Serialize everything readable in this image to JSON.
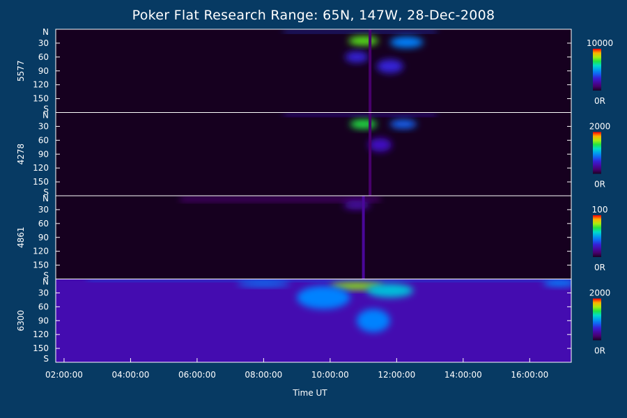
{
  "chart_data": {
    "type": "heatmap",
    "title": "Poker Flat Research Range: 65N, 147W, 28-Dec-2008",
    "xlabel": "Time UT",
    "x_ticks": [
      "02:00:00",
      "04:00:00",
      "06:00:00",
      "08:00:00",
      "10:00:00",
      "12:00:00",
      "14:00:00",
      "16:00:00"
    ],
    "x_range_hours": [
      1.75,
      17.25
    ],
    "y_ticks": [
      "N",
      "30",
      "60",
      "90",
      "120",
      "150",
      "S"
    ],
    "y_range_deg": [
      0,
      180
    ],
    "panels": [
      {
        "name": "5577",
        "scale_max": "10000",
        "scale_min": "0R",
        "features": [
          {
            "type": "band",
            "t0": 8.6,
            "t1": 13.2,
            "a0": 3,
            "a1": 8,
            "v": 0.35
          },
          {
            "type": "blob",
            "t": 11.0,
            "a": 25,
            "st": 0.45,
            "sa": 10,
            "v": 0.75
          },
          {
            "type": "blob",
            "t": 10.8,
            "a": 60,
            "st": 0.35,
            "sa": 12,
            "v": 0.3
          },
          {
            "type": "blob",
            "t": 12.3,
            "a": 28,
            "st": 0.5,
            "sa": 12,
            "v": 0.45
          },
          {
            "type": "blob",
            "t": 11.8,
            "a": 80,
            "st": 0.4,
            "sa": 15,
            "v": 0.3
          },
          {
            "type": "stripe",
            "t": 11.2,
            "v": 0.1
          }
        ]
      },
      {
        "name": "4278",
        "scale_max": "2000",
        "scale_min": "0R",
        "features": [
          {
            "type": "band",
            "t0": 8.6,
            "t1": 13.2,
            "a0": 3,
            "a1": 8,
            "v": 0.28
          },
          {
            "type": "blob",
            "t": 11.0,
            "a": 25,
            "st": 0.4,
            "sa": 10,
            "v": 0.7
          },
          {
            "type": "blob",
            "t": 12.2,
            "a": 25,
            "st": 0.4,
            "sa": 10,
            "v": 0.4
          },
          {
            "type": "blob",
            "t": 11.5,
            "a": 70,
            "st": 0.35,
            "sa": 15,
            "v": 0.25
          },
          {
            "type": "stripe",
            "t": 11.2,
            "v": 0.1
          }
        ]
      },
      {
        "name": "4861",
        "scale_max": "100",
        "scale_min": "0R",
        "features": [
          {
            "type": "band",
            "t0": 5.5,
            "t1": 11.5,
            "a0": 2,
            "a1": 12,
            "v": 0.12
          },
          {
            "type": "blob",
            "t": 10.8,
            "a": 20,
            "st": 0.4,
            "sa": 10,
            "v": 0.2
          },
          {
            "type": "stripe",
            "t": 11.0,
            "v": 0.18
          }
        ]
      },
      {
        "name": "6300",
        "scale_max": "2000",
        "scale_min": "0R",
        "features": [
          {
            "type": "base",
            "v": 0.22
          },
          {
            "type": "band",
            "t0": 2.7,
            "t1": 16.5,
            "a0": 0,
            "a1": 5,
            "v": 0.4
          },
          {
            "type": "blob",
            "t": 10.8,
            "a": 15,
            "st": 0.8,
            "sa": 8,
            "v": 0.78
          },
          {
            "type": "blob",
            "t": 9.8,
            "a": 40,
            "st": 0.8,
            "sa": 25,
            "v": 0.45
          },
          {
            "type": "blob",
            "t": 11.8,
            "a": 25,
            "st": 0.7,
            "sa": 15,
            "v": 0.55
          },
          {
            "type": "blob",
            "t": 11.3,
            "a": 90,
            "st": 0.5,
            "sa": 25,
            "v": 0.45
          },
          {
            "type": "blob",
            "t": 8.0,
            "a": 10,
            "st": 0.8,
            "sa": 6,
            "v": 0.45
          },
          {
            "type": "blob",
            "t": 16.9,
            "a": 8,
            "st": 0.5,
            "sa": 8,
            "v": 0.45
          }
        ]
      }
    ]
  }
}
